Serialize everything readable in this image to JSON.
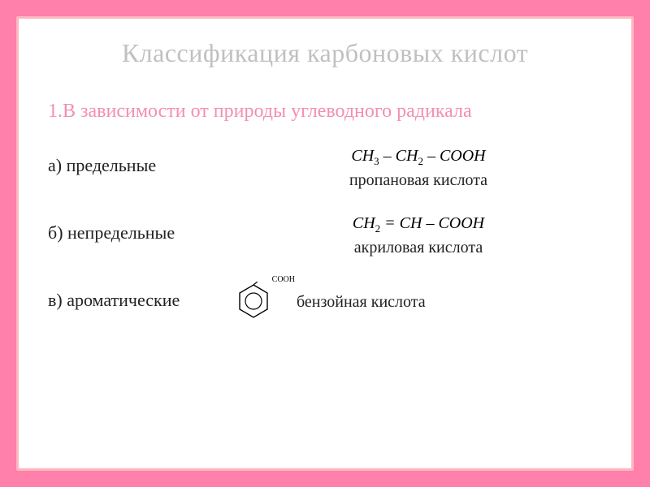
{
  "title": "Классификация карбоновых кислот",
  "subtitle": "1.В зависимости от природы углеводного радикала",
  "rows": [
    {
      "label": "а) предельные",
      "formula_html": "CH<sub>3</sub> – CH<sub>2</sub> – COOH",
      "compound": "пропановая кислота"
    },
    {
      "label": "б) непредельные",
      "formula_html": "CH<sub>2</sub> = CH – COOH",
      "compound": "акриловая кислота"
    },
    {
      "label": "в) ароматические",
      "compound": "бензойная кислота",
      "benzene_sub": "COOH"
    }
  ],
  "colors": {
    "page_bg": "#ff80ab",
    "slide_bg": "#ffffff",
    "slide_border": "#ffb6c1",
    "title_color": "#c0c0c0",
    "subtitle_color": "#f48fb1",
    "text_color": "#222222"
  },
  "fonts": {
    "title_size": 32,
    "subtitle_size": 24,
    "label_size": 22,
    "formula_size": 20,
    "compound_size": 20
  }
}
